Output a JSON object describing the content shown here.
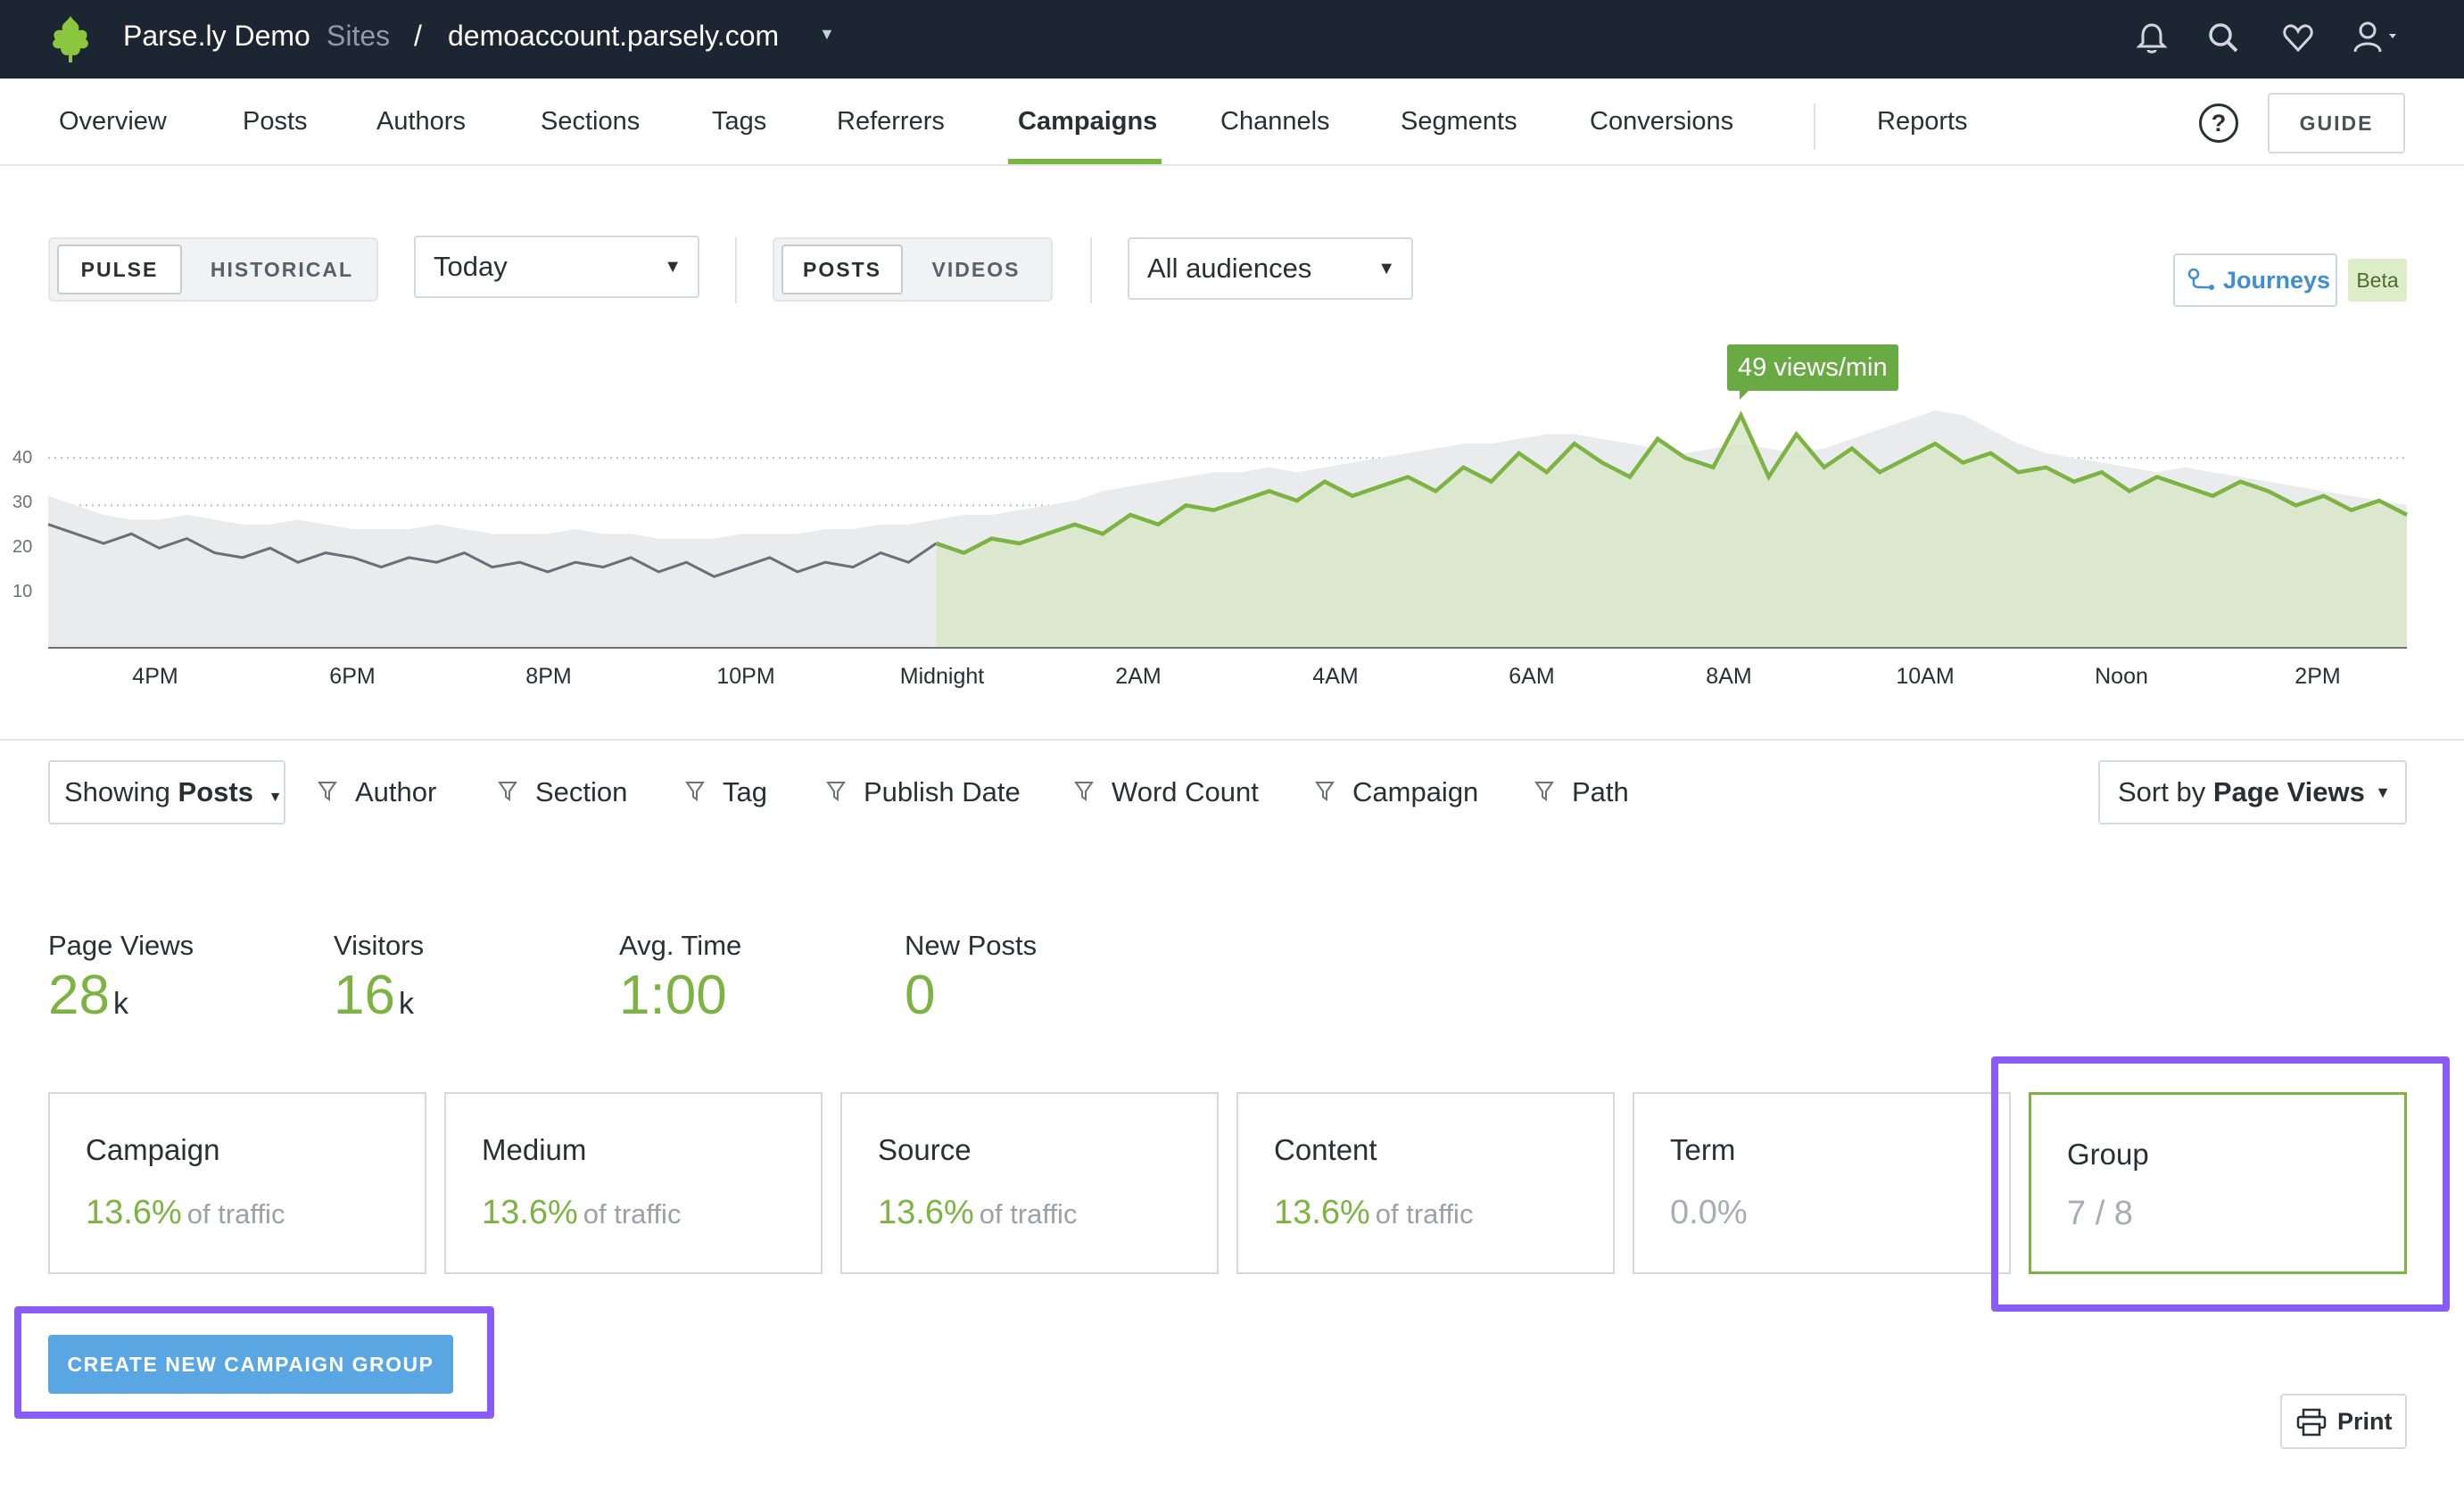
{
  "topbar": {
    "brand": "Parse.ly Demo",
    "sites_label": "Sites",
    "separator": "/",
    "site_name": "demoaccount.parsely.com",
    "icons": [
      "bell-icon",
      "search-icon",
      "heart-icon",
      "user-icon"
    ]
  },
  "nav": {
    "items": [
      "Overview",
      "Posts",
      "Authors",
      "Sections",
      "Tags",
      "Referrers",
      "Campaigns",
      "Channels",
      "Segments",
      "Conversions",
      "Reports"
    ],
    "active": "Campaigns",
    "help": "?",
    "guide": "GUIDE"
  },
  "controls": {
    "mode_pulse": "PULSE",
    "mode_historical": "HISTORICAL",
    "period": "Today",
    "type_posts": "POSTS",
    "type_videos": "VIDEOS",
    "audience": "All audiences",
    "journeys": "Journeys",
    "beta": "Beta"
  },
  "chart_data": {
    "type": "area",
    "y_ticks": [
      "40",
      "30",
      "20",
      "10"
    ],
    "x_ticks": [
      "4PM",
      "6PM",
      "8PM",
      "10PM",
      "Midnight",
      "2AM",
      "4AM",
      "6AM",
      "8AM",
      "10AM",
      "Noon",
      "2PM"
    ],
    "tooltip": "49 views/min",
    "ylim": [
      0,
      50
    ],
    "series": [
      {
        "values": [
          26,
          24,
          22,
          24,
          21,
          23,
          20,
          19,
          21,
          18,
          20,
          19,
          17,
          19,
          18,
          20,
          17,
          18,
          16,
          18,
          17,
          19,
          16,
          18,
          15,
          17,
          19,
          16,
          18,
          17,
          20,
          18,
          22,
          20,
          23,
          22,
          24,
          26,
          24,
          28,
          26,
          30,
          29,
          31,
          33,
          31,
          35,
          32,
          34,
          36,
          33,
          38,
          35,
          41,
          37,
          43,
          39,
          36,
          44,
          40,
          38,
          49,
          36,
          45,
          38,
          42,
          37,
          40,
          43,
          39,
          41,
          37,
          38,
          35,
          37,
          33,
          36,
          34,
          32,
          35,
          33,
          30,
          32,
          29,
          31,
          28
        ]
      },
      {
        "values": [
          32,
          30,
          28,
          27,
          27,
          28,
          27,
          26,
          26,
          27,
          26,
          25,
          25,
          25,
          26,
          25,
          24,
          24,
          24,
          25,
          24,
          24,
          23,
          23,
          23,
          24,
          24,
          24,
          25,
          25,
          26,
          26,
          27,
          28,
          28,
          29,
          30,
          31,
          33,
          34,
          35,
          36,
          37,
          37,
          38,
          37,
          38,
          39,
          40,
          41,
          42,
          43,
          43,
          44,
          45,
          45,
          44,
          43,
          42,
          41,
          42,
          43,
          42,
          41,
          42,
          44,
          46,
          48,
          50,
          49,
          46,
          43,
          41,
          40,
          39,
          38,
          37,
          38,
          37,
          36,
          35,
          34,
          33,
          32,
          31,
          30
        ]
      }
    ]
  },
  "filters": {
    "showing_prefix": "Showing",
    "showing_value": "Posts",
    "items": [
      "Author",
      "Section",
      "Tag",
      "Publish Date",
      "Word Count",
      "Campaign",
      "Path"
    ],
    "sort_prefix": "Sort by",
    "sort_value": "Page Views"
  },
  "stats": [
    {
      "label": "Page Views",
      "value": "28",
      "unit": "k"
    },
    {
      "label": "Visitors",
      "value": "16",
      "unit": "k"
    },
    {
      "label": "Avg. Time",
      "value": "1:00",
      "unit": ""
    },
    {
      "label": "New Posts",
      "value": "0",
      "unit": ""
    }
  ],
  "cards": [
    {
      "title": "Campaign",
      "pct": "13.6%",
      "sub": "of traffic"
    },
    {
      "title": "Medium",
      "pct": "13.6%",
      "sub": "of traffic"
    },
    {
      "title": "Source",
      "pct": "13.6%",
      "sub": "of traffic"
    },
    {
      "title": "Content",
      "pct": "13.6%",
      "sub": "of traffic"
    },
    {
      "title": "Term",
      "pct": "0.0%",
      "sub": ""
    },
    {
      "title": "Group",
      "pct": "7 / 8",
      "sub": ""
    }
  ],
  "actions": {
    "create_group": "CREATE NEW CAMPAIGN GROUP",
    "print": "Print"
  },
  "colors": {
    "accent_green": "#7cb342",
    "topbar": "#1c2532",
    "button_blue": "#5aa6e3",
    "highlight_purple": "#8a5cf5"
  }
}
